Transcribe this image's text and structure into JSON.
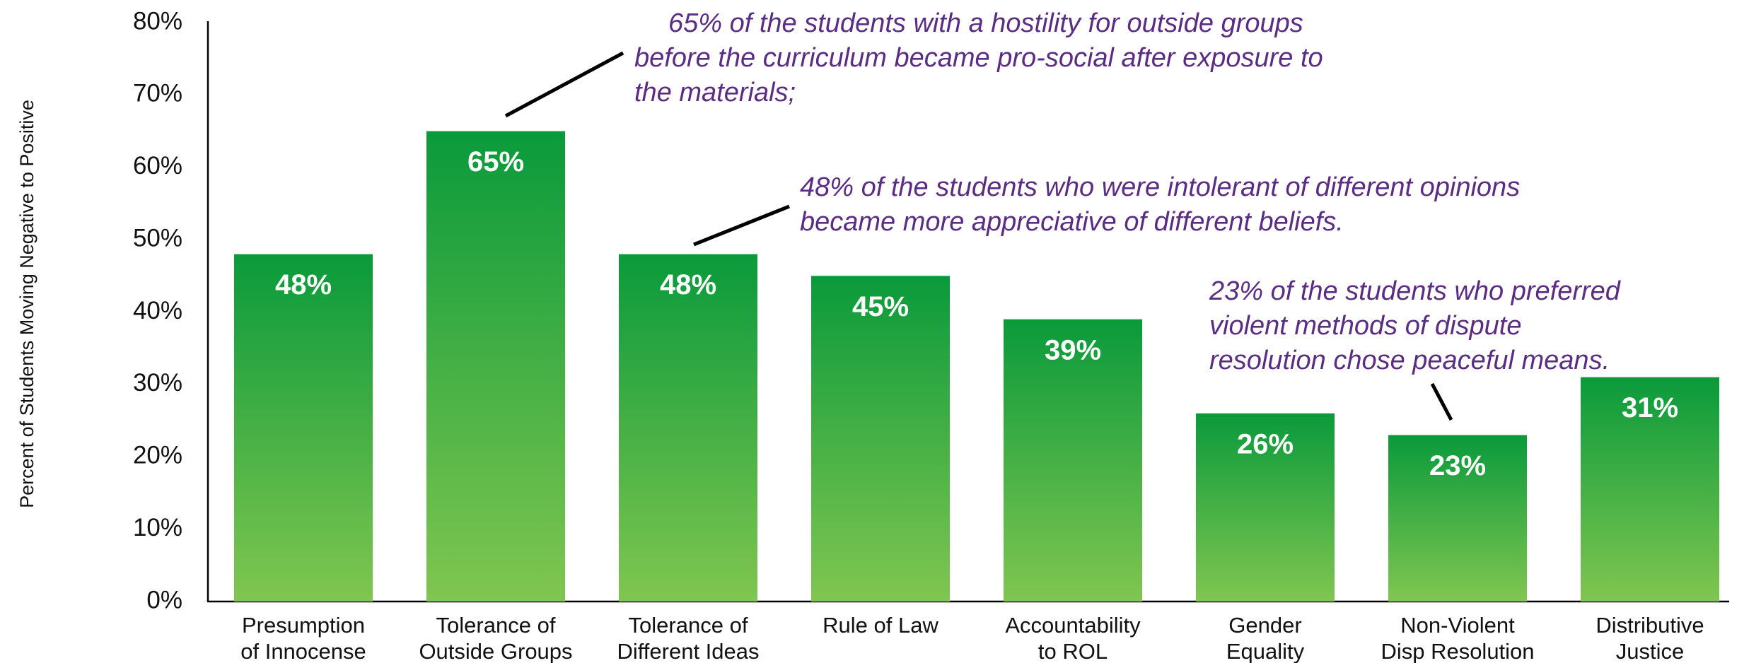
{
  "chart_data": {
    "type": "bar",
    "y_label": "Percent of Students Moving Negative to Positive",
    "categories": [
      "Presumption\nof Innocense",
      "Tolerance of\nOutside Groups",
      "Tolerance of\nDifferent Ideas",
      "Rule of Law",
      "Accountability\nto ROL",
      "Gender\nEquality",
      "Non-Violent\nDisp Resolution",
      "Distributive\nJustice"
    ],
    "values": [
      48,
      65,
      48,
      45,
      39,
      26,
      23,
      31
    ],
    "value_labels": [
      "48%",
      "65%",
      "48%",
      "45%",
      "39%",
      "26%",
      "23%",
      "31%"
    ],
    "color": "#0a9a3b",
    "ylim": [
      0,
      80
    ],
    "yticks": [
      {
        "value": 0,
        "label": "0%"
      },
      {
        "value": 10,
        "label": "10%"
      },
      {
        "value": 20,
        "label": "20%"
      },
      {
        "value": 30,
        "label": "30%"
      },
      {
        "value": 40,
        "label": "40%"
      },
      {
        "value": 50,
        "label": "50%"
      },
      {
        "value": 60,
        "label": "60%"
      },
      {
        "value": 70,
        "label": "70%"
      },
      {
        "value": 80,
        "label": "80%"
      }
    ],
    "grid": false,
    "annotations": [
      {
        "lines": [
          "65% of the students with a hostility for outside groups",
          "before the curriculum became pro-social after exposure to",
          "the materials;"
        ]
      },
      {
        "lines": [
          "48% of the students who were intolerant of different opinions",
          "became more appreciative of different beliefs."
        ]
      },
      {
        "lines": [
          "23% of the students who preferred",
          "violent methods of dispute",
          "resolution chose peaceful means."
        ]
      }
    ]
  }
}
